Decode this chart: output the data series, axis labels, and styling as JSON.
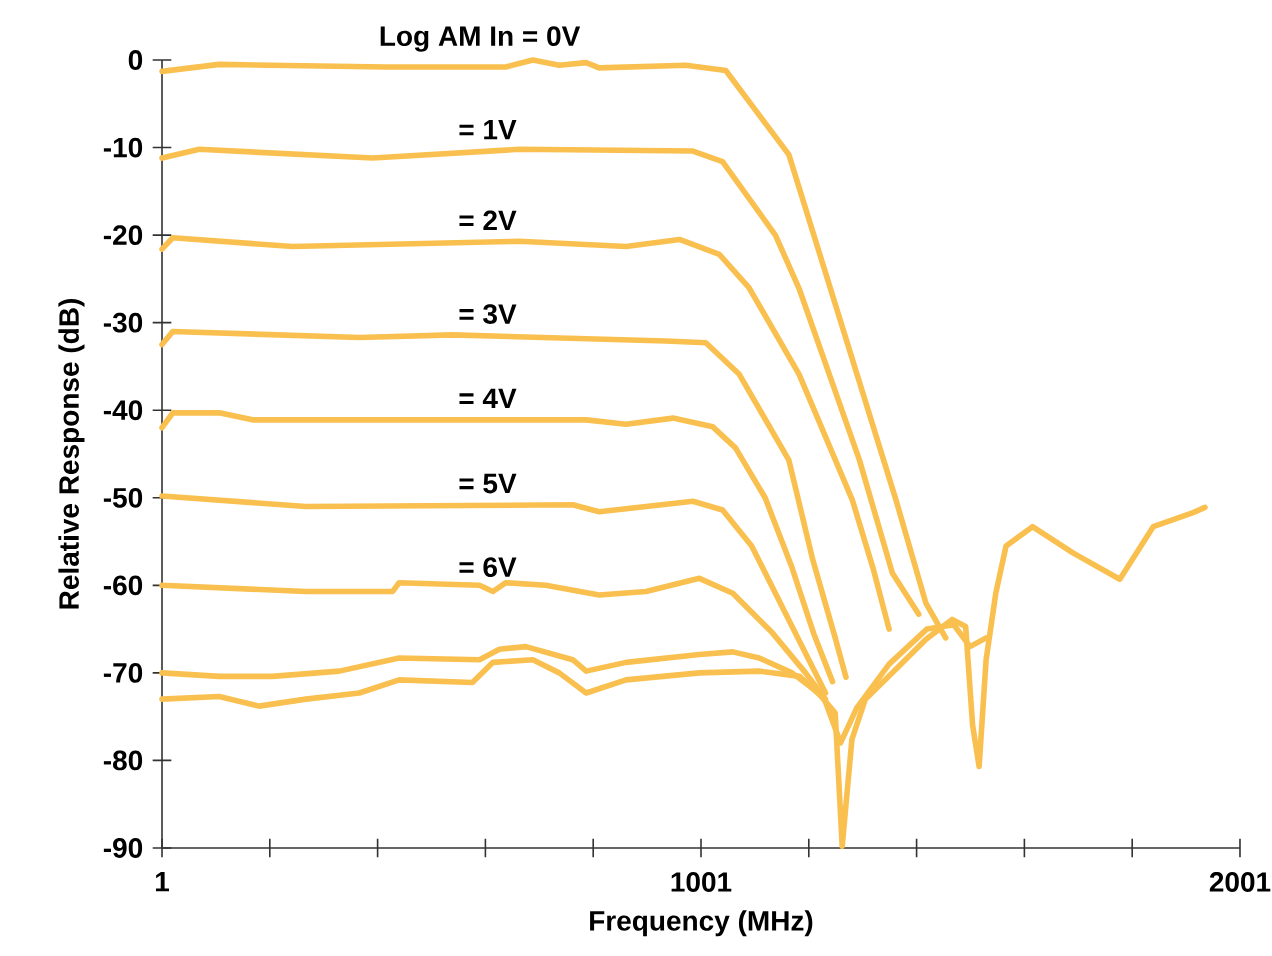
{
  "chart_data": {
    "type": "line",
    "xlabel": "Frequency (MHz)",
    "ylabel": "Relative Response (dB)",
    "xlim": [
      1,
      2001
    ],
    "ylim": [
      -90,
      0
    ],
    "xticks": [
      {
        "value": 1,
        "label": "1"
      },
      {
        "value": 201,
        "label": null
      },
      {
        "value": 401,
        "label": null
      },
      {
        "value": 601,
        "label": null
      },
      {
        "value": 801,
        "label": null
      },
      {
        "value": 1001,
        "label": "1001"
      },
      {
        "value": 1201,
        "label": null
      },
      {
        "value": 1401,
        "label": null
      },
      {
        "value": 1601,
        "label": null
      },
      {
        "value": 1801,
        "label": null
      },
      {
        "value": 2001,
        "label": "2001"
      }
    ],
    "yticks": [
      -90,
      -80,
      -70,
      -60,
      -50,
      -40,
      -30,
      -20,
      -10,
      0
    ],
    "marker": "none",
    "line_style": "solid",
    "series": [
      {
        "name": "Log AM In = 0V",
        "color": "#f9c04f",
        "x": [
          1,
          107,
          417,
          639,
          689,
          738,
          788,
          812,
          973,
          1047,
          1109,
          1164,
          1363,
          1418,
          1455
        ],
        "values": [
          -1.3,
          -0.5,
          -0.8,
          -0.8,
          0,
          -0.6,
          -0.3,
          -0.9,
          -0.6,
          -1.2,
          -6.3,
          -10.8,
          -50.3,
          -62,
          -66
        ]
      },
      {
        "name": "= 1V",
        "color": "#f9c04f",
        "x": [
          1,
          70,
          392,
          664,
          986,
          1041,
          1139,
          1183,
          1295,
          1356,
          1405
        ],
        "values": [
          -11.2,
          -10.2,
          -11.2,
          -10.2,
          -10.4,
          -11.6,
          -20,
          -26.1,
          -45.7,
          -58.6,
          -63.3
        ]
      },
      {
        "name": "= 2V",
        "color": "#f9c04f",
        "x": [
          1,
          21,
          243,
          664,
          862,
          961,
          1035,
          1090,
          1183,
          1282,
          1320,
          1350
        ],
        "values": [
          -21.6,
          -20.3,
          -21.3,
          -20.7,
          -21.3,
          -20.5,
          -22.2,
          -26,
          -35.9,
          -50.3,
          -58,
          -65
        ]
      },
      {
        "name": "= 3V",
        "color": "#f9c04f",
        "x": [
          1,
          21,
          367,
          540,
          936,
          1010,
          1072,
          1164,
          1208,
          1250,
          1270
        ],
        "values": [
          -32.5,
          -31,
          -31.7,
          -31.4,
          -32.1,
          -32.3,
          -35.9,
          -45.7,
          -57,
          -66,
          -70.5
        ]
      },
      {
        "name": "= 4V",
        "color": "#f9c04f",
        "x": [
          1,
          21,
          107,
          169,
          788,
          862,
          949,
          1023,
          1065,
          1120,
          1170,
          1210,
          1245
        ],
        "values": [
          -42,
          -40.3,
          -40.3,
          -41.1,
          -41.1,
          -41.6,
          -40.9,
          -41.9,
          -44.3,
          -50,
          -58,
          -65.5,
          -71
        ]
      },
      {
        "name": "= 5V",
        "color": "#f9c04f",
        "x": [
          1,
          268,
          763,
          812,
          986,
          1041,
          1095,
          1170,
          1201,
          1232
        ],
        "values": [
          -49.8,
          -51,
          -50.8,
          -51.6,
          -50.4,
          -51.4,
          -55.5,
          -64.7,
          -68.5,
          -72.3
        ]
      },
      {
        "name": "= 6V",
        "color": "#f9c04f",
        "x": [
          1,
          268,
          429,
          441,
          590,
          615,
          639,
          713,
          812,
          899,
          998,
          1060,
          1133,
          1195,
          1232
        ],
        "values": [
          -60,
          -60.7,
          -60.7,
          -59.7,
          -60,
          -60.7,
          -59.7,
          -60,
          -61.1,
          -60.7,
          -59.2,
          -60.9,
          -65.4,
          -70,
          -73
        ]
      },
      {
        "color": "#f9c04f",
        "x": [
          1,
          107,
          206,
          330,
          441,
          590,
          627,
          676,
          763,
          788,
          862,
          998,
          1060,
          1109,
          1170,
          1219,
          1250,
          1263,
          1281,
          1306,
          1356,
          1418,
          1467,
          1492,
          1505,
          1517,
          1530,
          1548,
          1567,
          1616,
          1691,
          1778,
          1840,
          1914,
          1936
        ],
        "values": [
          -70,
          -70.4,
          -70.4,
          -69.8,
          -68.3,
          -68.5,
          -67.3,
          -67,
          -68.5,
          -69.8,
          -68.8,
          -67.9,
          -67.6,
          -68.3,
          -70,
          -72.3,
          -74.6,
          -89.8,
          -77.6,
          -73,
          -70,
          -66.2,
          -63.9,
          -64.7,
          -76,
          -80.7,
          -68.5,
          -60.9,
          -55.5,
          -53.3,
          -56.3,
          -59.3,
          -53.3,
          -51.7,
          -51.1
        ]
      },
      {
        "color": "#f9c04f",
        "x": [
          1,
          107,
          181,
          268,
          367,
          441,
          577,
          615,
          689,
          738,
          788,
          862,
          998,
          1109,
          1184,
          1230,
          1260,
          1290,
          1350,
          1420,
          1470,
          1500,
          1530
        ],
        "values": [
          -73,
          -72.7,
          -73.8,
          -73,
          -72.3,
          -70.8,
          -71.1,
          -68.8,
          -68.5,
          -70,
          -72.3,
          -70.8,
          -70,
          -69.8,
          -70.4,
          -73,
          -78,
          -74,
          -69,
          -65,
          -64.5,
          -67,
          -66
        ]
      }
    ]
  }
}
